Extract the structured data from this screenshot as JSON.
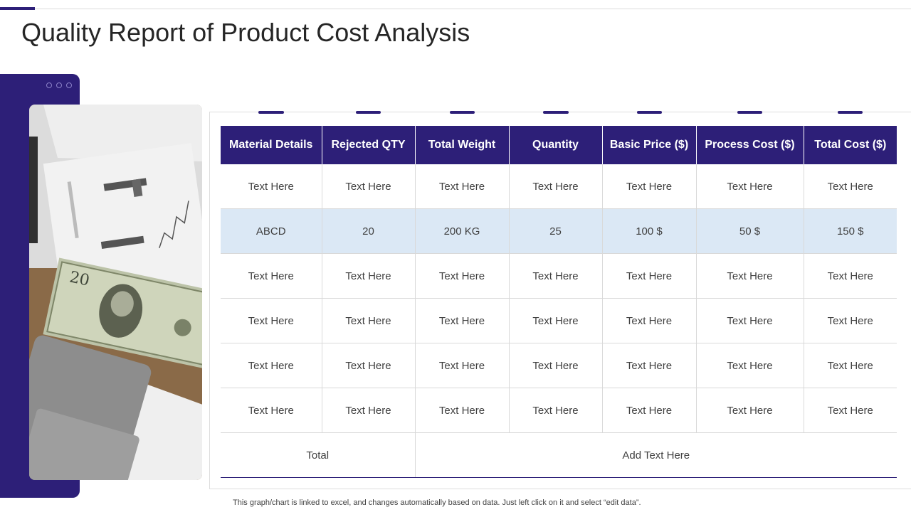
{
  "page": {
    "title": "Quality Report of Product Cost Analysis"
  },
  "table": {
    "headers": [
      "Material Details",
      "Rejected QTY",
      "Total Weight",
      "Quantity",
      "Basic Price ($)",
      "Process Cost ($)",
      "Total Cost ($)"
    ],
    "rows": [
      [
        "Text Here",
        "Text Here",
        "Text Here",
        "Text Here",
        "Text Here",
        "Text Here",
        "Text Here"
      ],
      [
        "ABCD",
        "20",
        "200 KG",
        "25",
        "100 $",
        "50 $",
        "150 $"
      ],
      [
        "Text Here",
        "Text Here",
        "Text Here",
        "Text Here",
        "Text Here",
        "Text Here",
        "Text Here"
      ],
      [
        "Text Here",
        "Text Here",
        "Text Here",
        "Text Here",
        "Text Here",
        "Text Here",
        "Text Here"
      ],
      [
        "Text Here",
        "Text Here",
        "Text Here",
        "Text Here",
        "Text Here",
        "Text Here",
        "Text Here"
      ],
      [
        "Text Here",
        "Text Here",
        "Text Here",
        "Text Here",
        "Text Here",
        "Text Here",
        "Text Here"
      ]
    ],
    "total_label": "Total",
    "total_value": "Add Text Here"
  },
  "footnote": "This graph/chart is linked to excel, and changes automatically based on data. Just left click on it and select “edit data”.",
  "colors": {
    "accent": "#2d1f78",
    "highlight_row": "#dbe8f5"
  },
  "image": {
    "icon": "money-desk-photo"
  }
}
